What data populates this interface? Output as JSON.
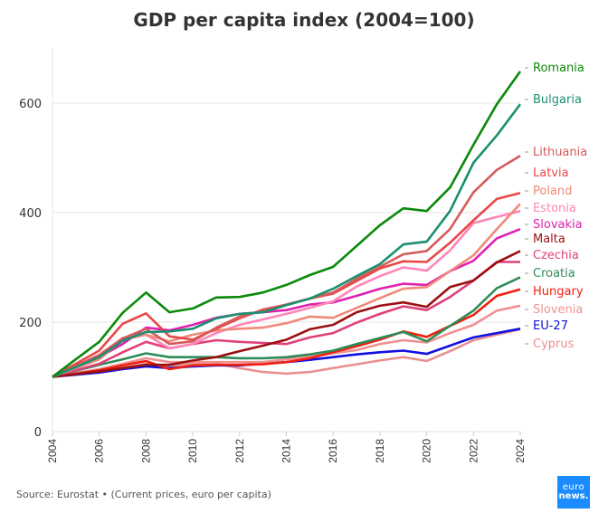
{
  "chart_data": {
    "type": "line",
    "title": "GDP per capita index (2004=100)",
    "xlabel": "",
    "ylabel": "",
    "x": [
      2004,
      2005,
      2006,
      2007,
      2008,
      2009,
      2010,
      2011,
      2012,
      2013,
      2014,
      2015,
      2016,
      2017,
      2018,
      2019,
      2020,
      2021,
      2022,
      2023,
      2024
    ],
    "x_ticks": [
      "2004",
      "2006",
      "2008",
      "2010",
      "2012",
      "2014",
      "2016",
      "2018",
      "2020",
      "2022",
      "2024"
    ],
    "y_ticks": [
      "0",
      "200",
      "400",
      "600"
    ],
    "ylim": [
      0,
      700
    ],
    "xlim": [
      2004,
      2024
    ],
    "grid": true,
    "legend": "right (end-of-line labels)",
    "series": [
      {
        "name": "Romania",
        "color": "#0a8a0a",
        "values": [
          100,
          132,
          164,
          217,
          254,
          218,
          225,
          245,
          246,
          254,
          268,
          286,
          301,
          339,
          377,
          408,
          403,
          446,
          524,
          598,
          658
        ]
      },
      {
        "name": "Bulgaria",
        "color": "#1a9070",
        "values": [
          100,
          118,
          136,
          166,
          182,
          183,
          188,
          207,
          215,
          218,
          231,
          243,
          261,
          284,
          306,
          342,
          347,
          403,
          491,
          541,
          598
        ]
      },
      {
        "name": "Lithuania",
        "color": "#d65a5a",
        "values": [
          100,
          120,
          140,
          170,
          188,
          160,
          165,
          190,
          210,
          221,
          232,
          243,
          254,
          279,
          301,
          324,
          330,
          370,
          437,
          478,
          504
        ]
      },
      {
        "name": "Latvia",
        "color": "#e84848",
        "values": [
          100,
          124,
          148,
          197,
          216,
          174,
          168,
          188,
          207,
          223,
          232,
          243,
          252,
          275,
          298,
          311,
          310,
          345,
          386,
          425,
          436
        ]
      },
      {
        "name": "Poland",
        "color": "#f08a7a",
        "values": [
          100,
          116,
          132,
          168,
          177,
          165,
          177,
          185,
          188,
          190,
          198,
          210,
          208,
          226,
          244,
          261,
          264,
          293,
          322,
          370,
          416
        ]
      },
      {
        "name": "Estonia",
        "color": "#ff85b8",
        "values": [
          100,
          120,
          140,
          171,
          177,
          152,
          160,
          180,
          195,
          205,
          215,
          226,
          238,
          265,
          284,
          300,
          294,
          331,
          381,
          392,
          403
        ]
      },
      {
        "name": "Slovakia",
        "color": "#e020b0",
        "values": [
          100,
          118,
          136,
          160,
          190,
          185,
          195,
          208,
          215,
          218,
          222,
          232,
          236,
          248,
          261,
          270,
          268,
          293,
          312,
          353,
          370
        ]
      },
      {
        "name": "Malta",
        "color": "#9b1010",
        "values": [
          100,
          105,
          110,
          116,
          122,
          122,
          130,
          136,
          147,
          157,
          168,
          187,
          195,
          218,
          230,
          236,
          228,
          264,
          276,
          309,
          330
        ]
      },
      {
        "name": "Czechia",
        "color": "#e0407a",
        "values": [
          100,
          112,
          124,
          145,
          164,
          152,
          160,
          167,
          164,
          162,
          160,
          172,
          180,
          199,
          215,
          229,
          222,
          246,
          276,
          310,
          310
        ]
      },
      {
        "name": "Croatia",
        "color": "#2e8b57",
        "values": [
          100,
          111,
          122,
          132,
          143,
          136,
          136,
          136,
          134,
          134,
          136,
          141,
          148,
          160,
          171,
          182,
          165,
          193,
          221,
          262,
          282
        ]
      },
      {
        "name": "Hungary",
        "color": "#f02010",
        "values": [
          100,
          106,
          112,
          121,
          129,
          114,
          121,
          122,
          122,
          123,
          127,
          134,
          145,
          156,
          168,
          183,
          173,
          193,
          213,
          248,
          260
        ]
      },
      {
        "name": "Slovenia",
        "color": "#f09090",
        "values": [
          100,
          107,
          114,
          124,
          134,
          127,
          127,
          127,
          127,
          127,
          132,
          137,
          143,
          149,
          160,
          167,
          163,
          180,
          195,
          221,
          230
        ]
      },
      {
        "name": "EU-27",
        "color": "#1010e0",
        "values": [
          100,
          104,
          108,
          114,
          119,
          116,
          119,
          121,
          121,
          124,
          127,
          131,
          136,
          141,
          145,
          148,
          142,
          157,
          172,
          180,
          188
        ]
      },
      {
        "name": "Cyprus",
        "color": "#e89090",
        "values": [
          100,
          105,
          110,
          116,
          124,
          120,
          124,
          124,
          116,
          109,
          106,
          109,
          116,
          123,
          130,
          136,
          129,
          147,
          167,
          177,
          187
        ]
      }
    ]
  },
  "labels": [
    {
      "name": "Romania",
      "color": "#0a8a0a"
    },
    {
      "name": "Bulgaria",
      "color": "#1a9070"
    },
    {
      "name": "Lithuania",
      "color": "#d65a5a"
    },
    {
      "name": "Latvia",
      "color": "#e84848"
    },
    {
      "name": "Poland",
      "color": "#f08a7a"
    },
    {
      "name": "Estonia",
      "color": "#ff85b8"
    },
    {
      "name": "Slovakia",
      "color": "#e020b0"
    },
    {
      "name": "Malta",
      "color": "#9b1010"
    },
    {
      "name": "Czechia",
      "color": "#e0407a"
    },
    {
      "name": "Croatia",
      "color": "#2e8b57"
    },
    {
      "name": "Hungary",
      "color": "#f02010"
    },
    {
      "name": "Slovenia",
      "color": "#f09090"
    },
    {
      "name": "EU-27",
      "color": "#1010e0"
    },
    {
      "name": "Cyprus",
      "color": "#e89090"
    }
  ],
  "footer": {
    "source": "Source: Eurostat • (Current prices, euro per capita)",
    "logo_line1": "euro",
    "logo_line2": "news."
  }
}
